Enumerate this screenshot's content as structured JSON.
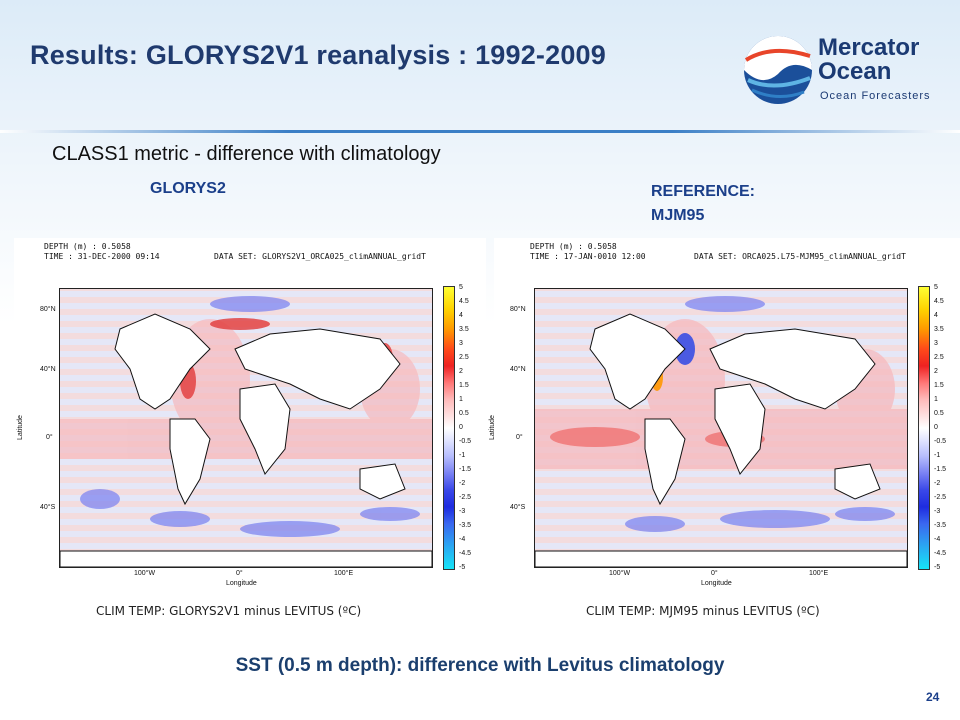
{
  "slide": {
    "title": "Results: GLORYS2V1  reanalysis :  1992-2009",
    "subtitle": "CLASS1 metric - difference with climatology",
    "left_label": "GLORYS2",
    "right_label_line1": "REFERENCE:",
    "right_label_line2": "MJM95",
    "bottom_caption": "SST (0.5 m depth): difference with Levitus climatology",
    "page_number": "24"
  },
  "logo": {
    "line1": "Mercator",
    "line2": "Ocean",
    "line3": "Ocean Forecasters"
  },
  "left_panel": {
    "depth": "DEPTH (m) : 0.5058",
    "time": "TIME : 31-DEC-2000 09:14",
    "dataset": "DATA SET: GLORYS2V1_ORCA025_climANNUAL_gridT",
    "caption": "CLIM TEMP: GLORYS2V1 minus LEVITUS (ºC)"
  },
  "right_panel": {
    "depth": "DEPTH (m) : 0.5058",
    "time": "TIME : 17-JAN-0010 12:00",
    "dataset": "DATA SET: ORCA025.L75-MJM95_climANNUAL_gridT",
    "caption": "CLIM TEMP: MJM95 minus LEVITUS (ºC)"
  },
  "axes": {
    "ylabels": [
      "80°N",
      "40°N",
      "0°",
      "40°S"
    ],
    "xlabels": [
      "100°W",
      "0°",
      "100°E"
    ],
    "xname": "Longitude",
    "yname": "Latitude"
  },
  "colorbar": {
    "ticks": [
      "5",
      "4.5",
      "4",
      "3.5",
      "3",
      "2.5",
      "2",
      "1.5",
      "1",
      "0.5",
      "0",
      "-0.5",
      "-1",
      "-1.5",
      "-2",
      "-2.5",
      "-3",
      "-3.5",
      "-4",
      "-4.5",
      "-5"
    ]
  }
}
